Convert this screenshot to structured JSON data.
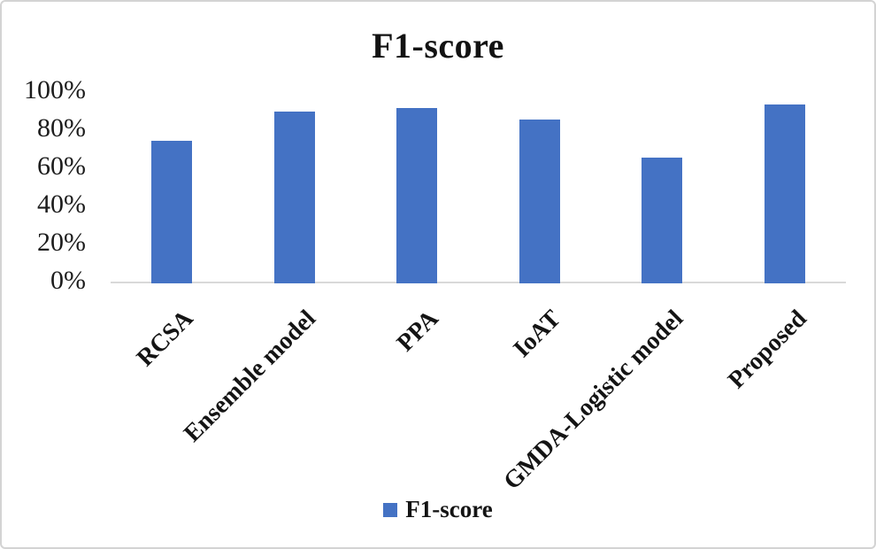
{
  "chart_data": {
    "type": "bar",
    "title": "F1-score",
    "categories": [
      "RCSA",
      "Ensemble model",
      "PPA",
      "IoAT",
      "GMDA-Logistic model",
      "Proposed"
    ],
    "series": [
      {
        "name": "F1-score",
        "values": [
          75,
          90,
          92,
          86,
          66,
          94
        ]
      }
    ],
    "value_unit": "percent",
    "xlabel": "",
    "ylabel": "",
    "ylim": [
      0,
      100
    ],
    "yticks": [
      0,
      20,
      40,
      60,
      80,
      100
    ],
    "ytick_labels": [
      "0%",
      "20%",
      "40%",
      "60%",
      "80%",
      "100%"
    ],
    "grid": false,
    "x_label_rotation_deg": -45,
    "legend": {
      "position": "bottom",
      "entries": [
        {
          "label": "F1-score",
          "color": "#4472C4"
        }
      ]
    },
    "colors": {
      "bar": "#4472C4",
      "axis_line": "#d9d9d9",
      "text": "#141414",
      "figure_border": "#d3d3d3",
      "background": "#ffffff"
    }
  }
}
